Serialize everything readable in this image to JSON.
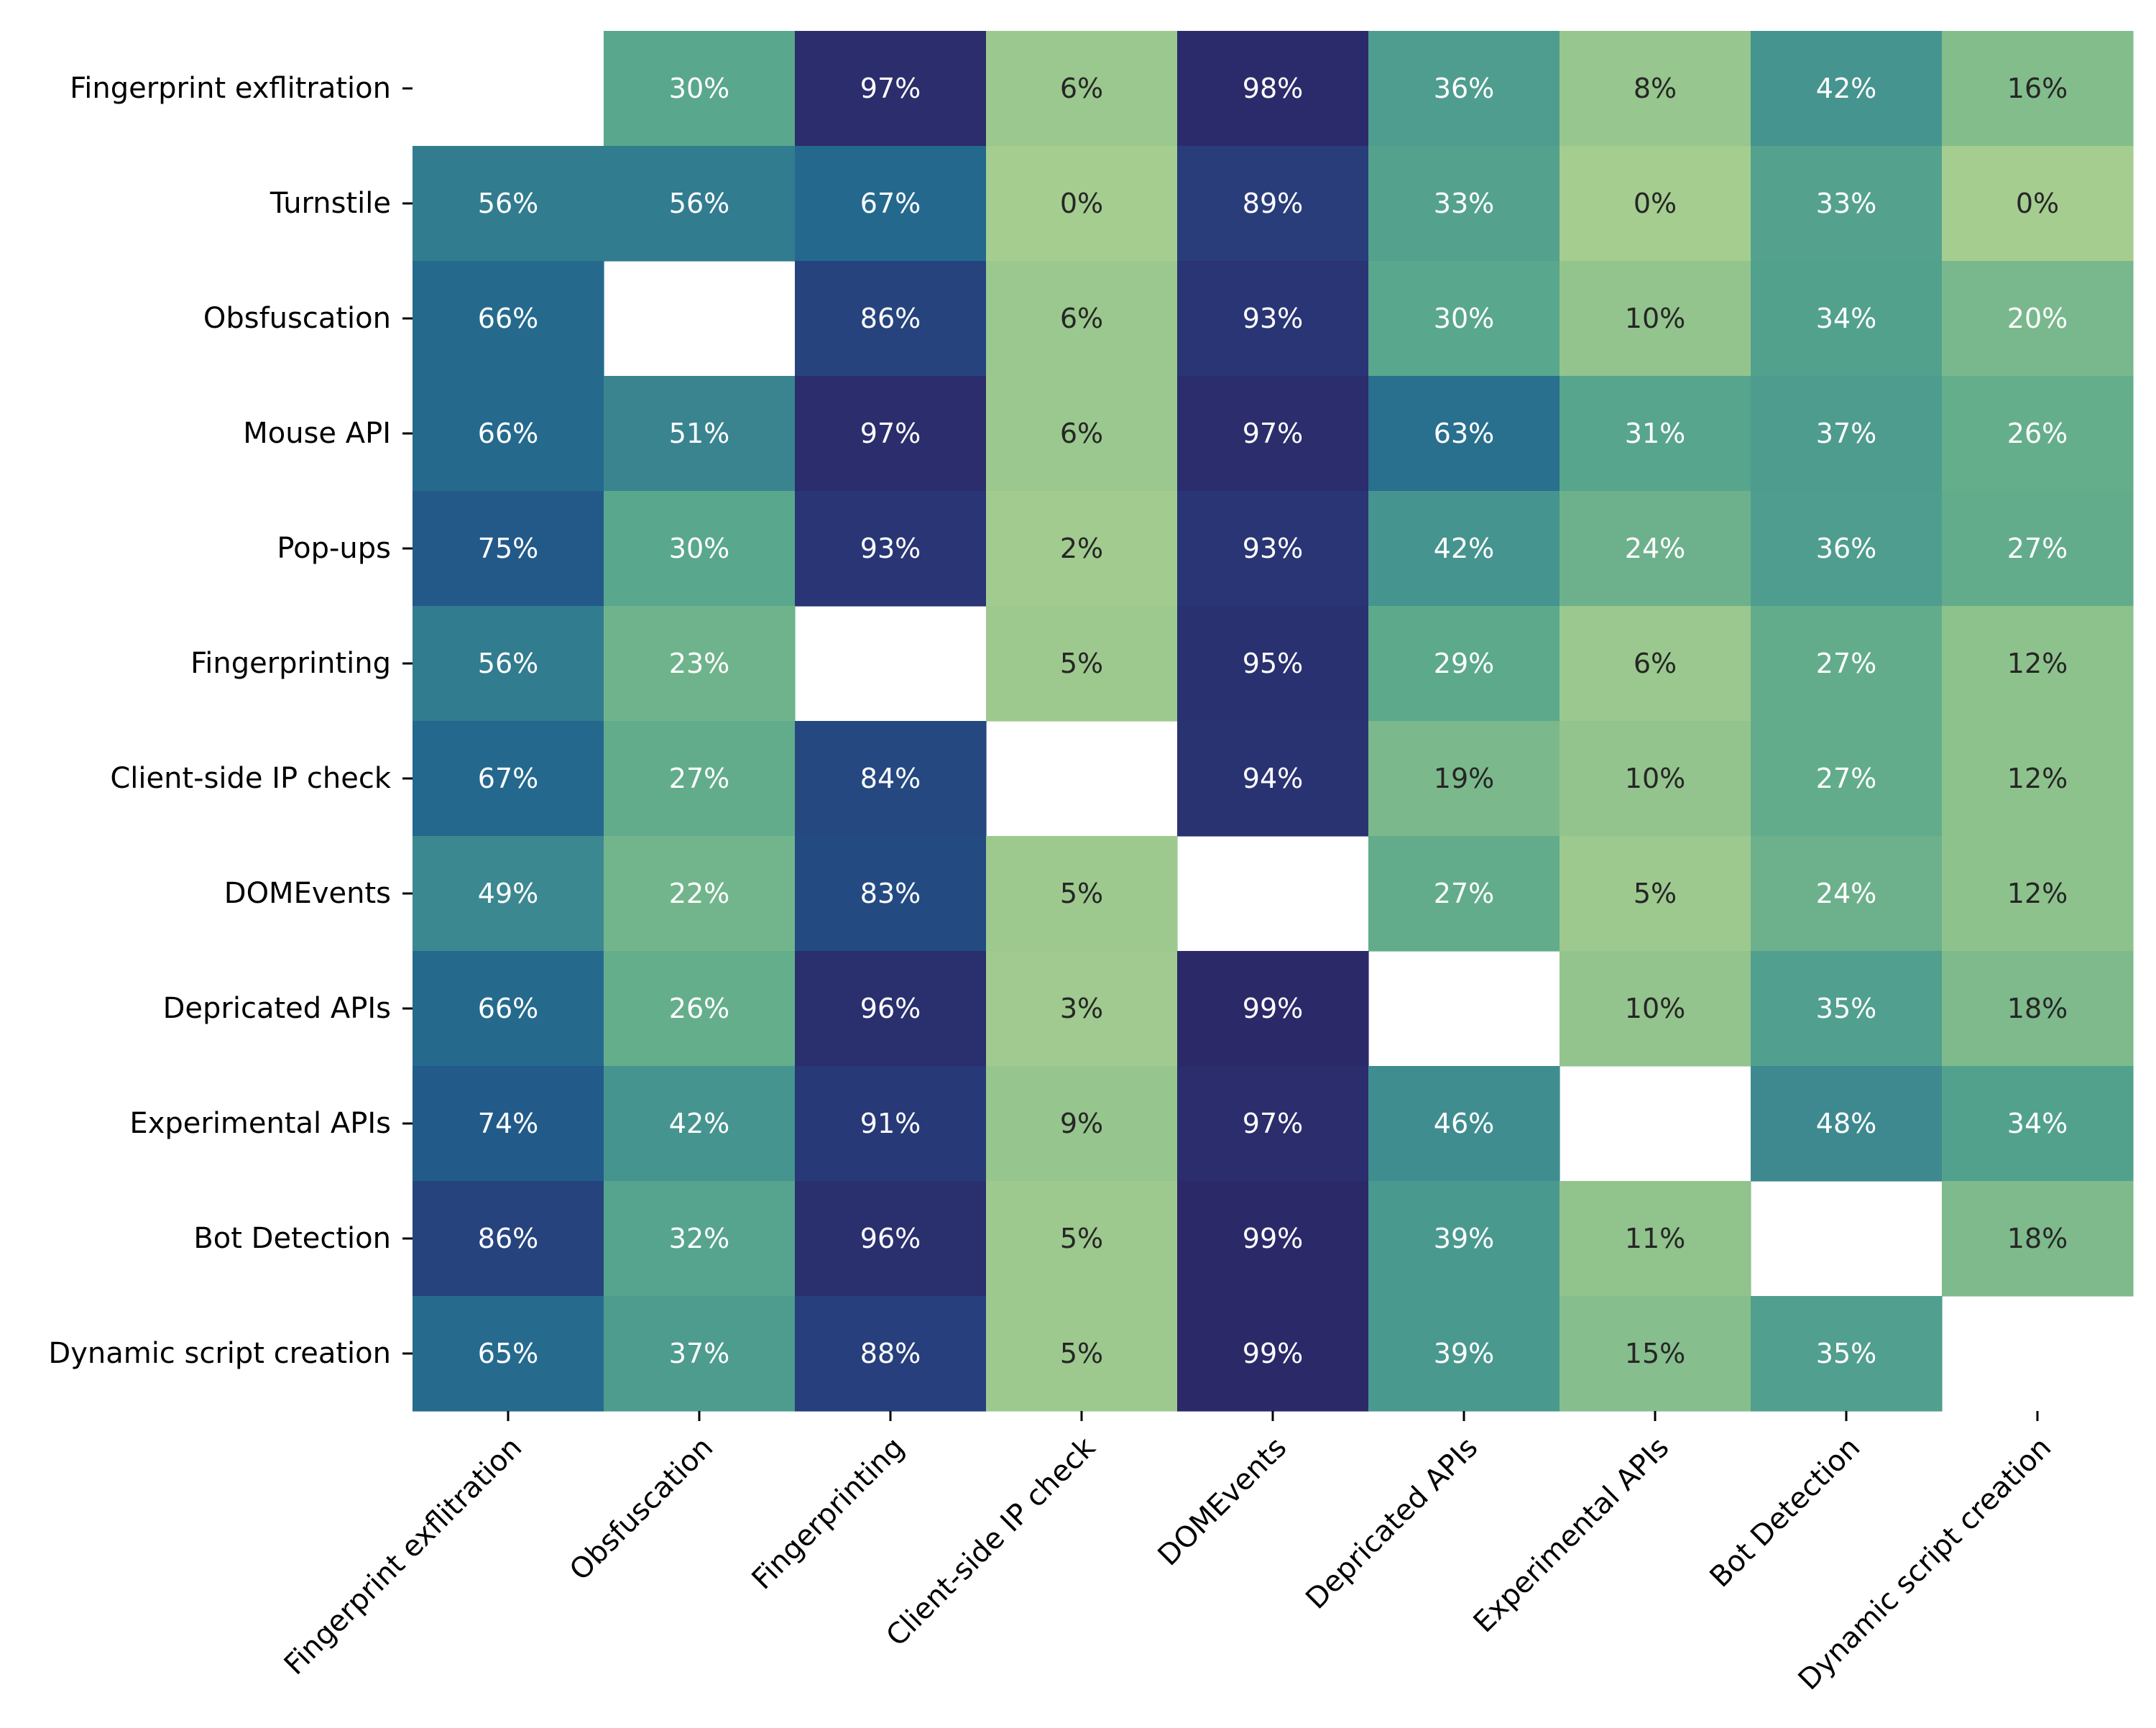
{
  "chart_data": {
    "type": "heatmap",
    "title": "",
    "xlabel": "",
    "ylabel": "",
    "colormap": "crest",
    "value_range": [
      0,
      100
    ],
    "value_format": "percent",
    "row_labels": [
      "Fingerprint exflitration",
      "Turnstile",
      "Obsfuscation",
      "Mouse API",
      "Pop-ups",
      "Fingerprinting",
      "Client-side IP check",
      "DOMEvents",
      "Depricated APIs",
      "Experimental APIs",
      "Bot Detection",
      "Dynamic script creation"
    ],
    "col_labels": [
      "Fingerprint exflitration",
      "Obsfuscation",
      "Fingerprinting",
      "Client-side IP check",
      "DOMEvents",
      "Depricated APIs",
      "Experimental APIs",
      "Bot Detection",
      "Dynamic script creation"
    ],
    "values": [
      [
        null,
        30,
        97,
        6,
        98,
        36,
        8,
        42,
        16
      ],
      [
        56,
        56,
        67,
        0,
        89,
        33,
        0,
        33,
        0
      ],
      [
        66,
        null,
        86,
        6,
        93,
        30,
        10,
        34,
        20
      ],
      [
        66,
        51,
        97,
        6,
        97,
        63,
        31,
        37,
        26
      ],
      [
        75,
        30,
        93,
        2,
        93,
        42,
        24,
        36,
        27
      ],
      [
        56,
        23,
        null,
        5,
        95,
        29,
        6,
        27,
        12
      ],
      [
        67,
        27,
        84,
        null,
        94,
        19,
        10,
        27,
        12
      ],
      [
        49,
        22,
        83,
        5,
        null,
        27,
        5,
        24,
        12
      ],
      [
        66,
        26,
        96,
        3,
        99,
        null,
        10,
        35,
        18
      ],
      [
        74,
        42,
        91,
        9,
        97,
        46,
        null,
        48,
        34
      ],
      [
        86,
        32,
        96,
        5,
        99,
        39,
        11,
        null,
        18
      ],
      [
        65,
        37,
        88,
        5,
        99,
        39,
        15,
        35,
        null
      ]
    ],
    "legend": "none",
    "grid": false
  }
}
